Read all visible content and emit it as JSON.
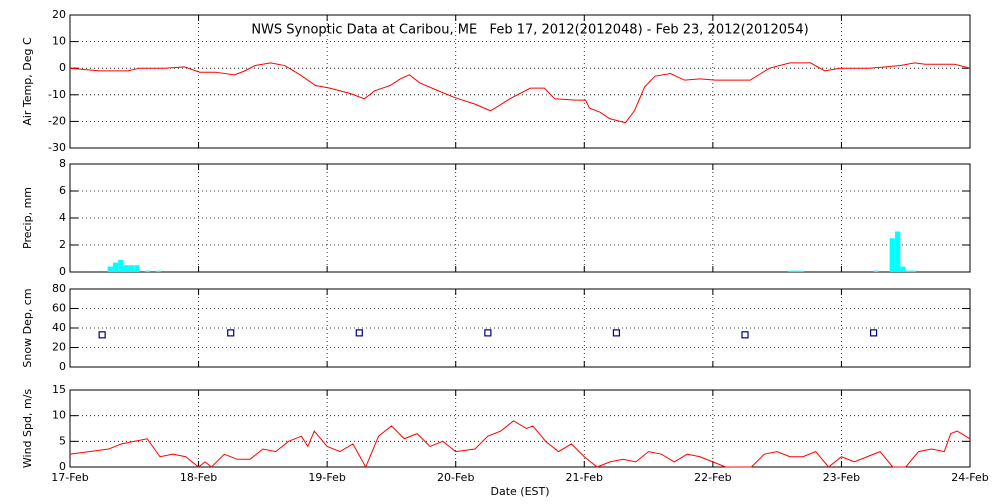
{
  "chart_data": [
    {
      "type": "line",
      "title": "NWS Synoptic Data at Caribou, ME   Feb 17, 2012(2012048) - Feb 23, 2012(2012054)",
      "ylabel": "Air Temp, Deg C",
      "x": [
        17.0,
        17.23,
        17.45,
        17.54,
        17.74,
        17.89,
        18.01,
        18.13,
        18.28,
        18.36,
        18.44,
        18.56,
        18.67,
        18.79,
        18.91,
        19.02,
        19.18,
        19.29,
        19.37,
        19.49,
        19.57,
        19.64,
        19.72,
        19.84,
        19.99,
        20.15,
        20.27,
        20.34,
        20.42,
        20.58,
        20.69,
        20.77,
        20.93,
        21.01,
        21.04,
        21.12,
        21.2,
        21.32,
        21.39,
        21.47,
        21.55,
        21.67,
        21.78,
        21.9,
        22.02,
        22.29,
        22.44,
        22.6,
        22.76,
        22.87,
        22.99,
        23.22,
        23.46,
        23.57,
        23.65,
        23.77,
        23.88,
        24.0
      ],
      "values": [
        0,
        -1,
        -1,
        0,
        0,
        0.5,
        -1.5,
        -1.5,
        -2.5,
        -1,
        1,
        2,
        1,
        -2.5,
        -6.5,
        -7.5,
        -9.5,
        -11.5,
        -8.5,
        -6.5,
        -4,
        -2.5,
        -5.5,
        -8,
        -11,
        -13.5,
        -16,
        -14,
        -11.5,
        -7.5,
        -7.5,
        -11.5,
        -12,
        -12,
        -15,
        -16.5,
        -19,
        -20.5,
        -16,
        -7,
        -3,
        -2,
        -4.5,
        -4,
        -4.5,
        -4.5,
        0,
        2,
        2,
        -1,
        0,
        0,
        1,
        2,
        1.5,
        1.5,
        1.5,
        0
      ],
      "color": "#ff0000",
      "xlim": [
        17,
        24
      ],
      "xticks": [
        17,
        18,
        19,
        20,
        21,
        22,
        23,
        24
      ],
      "ylim": [
        -30,
        20
      ],
      "yticks": [
        -30,
        -20,
        -10,
        0,
        10,
        20
      ],
      "grid": true
    },
    {
      "type": "bar",
      "ylabel": "Precip, mm",
      "x": [
        17.292,
        17.333,
        17.375,
        17.417,
        17.458,
        17.5,
        17.583,
        17.667,
        22.583,
        22.625,
        22.667,
        23.25,
        23.375,
        23.417,
        23.458,
        23.5,
        23.542
      ],
      "values": [
        0.4,
        0.7,
        0.9,
        0.5,
        0.5,
        0.5,
        0.1,
        0.1,
        0.1,
        0.1,
        0.1,
        0.1,
        2.5,
        3.0,
        0.4,
        0.1,
        0.1
      ],
      "color": "#00ffff",
      "xlim": [
        17,
        24
      ],
      "xticks": [
        17,
        18,
        19,
        20,
        21,
        22,
        23,
        24
      ],
      "ylim": [
        0,
        8
      ],
      "yticks": [
        0,
        2,
        4,
        6,
        8
      ],
      "grid": true
    },
    {
      "type": "scatter",
      "ylabel": "Snow Dep, cm",
      "x": [
        17.25,
        18.25,
        19.25,
        20.25,
        21.25,
        22.25,
        23.25
      ],
      "values": [
        33,
        35,
        35,
        35,
        35,
        33,
        35
      ],
      "color": "#000080",
      "xlim": [
        17,
        24
      ],
      "xticks": [
        17,
        18,
        19,
        20,
        21,
        22,
        23,
        24
      ],
      "ylim": [
        0,
        80
      ],
      "yticks": [
        0,
        20,
        40,
        60,
        80
      ],
      "grid": true
    },
    {
      "type": "line",
      "ylabel": "Wind Spd, m/s",
      "xlabel": "Date (EST)",
      "x": [
        17.0,
        17.15,
        17.3,
        17.4,
        17.5,
        17.6,
        17.7,
        17.8,
        17.9,
        18.0,
        18.05,
        18.1,
        18.2,
        18.3,
        18.4,
        18.5,
        18.6,
        18.7,
        18.8,
        18.85,
        18.9,
        19.0,
        19.1,
        19.2,
        19.3,
        19.4,
        19.5,
        19.6,
        19.7,
        19.8,
        19.9,
        20.0,
        20.15,
        20.25,
        20.35,
        20.45,
        20.55,
        20.6,
        20.7,
        20.8,
        20.9,
        21.0,
        21.1,
        21.2,
        21.3,
        21.4,
        21.5,
        21.6,
        21.7,
        21.8,
        21.9,
        22.0,
        22.1,
        22.2,
        22.3,
        22.4,
        22.5,
        22.6,
        22.7,
        22.8,
        22.9,
        23.0,
        23.1,
        23.2,
        23.3,
        23.4,
        23.5,
        23.6,
        23.7,
        23.8,
        23.85,
        23.9,
        24.0
      ],
      "values": [
        2.5,
        3,
        3.5,
        4.5,
        5,
        5.5,
        2,
        2.5,
        2,
        0,
        1,
        0,
        2.5,
        1.5,
        1.5,
        3.5,
        3,
        5,
        6,
        4,
        7,
        4,
        3,
        4.5,
        0,
        6,
        8,
        5.5,
        6.5,
        4,
        5,
        3,
        3.5,
        6,
        7,
        9,
        7.5,
        8,
        5,
        3,
        4.5,
        2,
        0,
        1,
        1.5,
        1,
        3,
        2.5,
        1,
        2.5,
        2,
        1,
        0,
        0,
        0,
        2.5,
        3,
        2,
        2,
        3,
        0,
        2,
        1,
        2,
        3,
        0,
        0,
        3,
        3.5,
        3,
        6.5,
        7,
        5.5
      ],
      "color": "#ff0000",
      "xlim": [
        17,
        24
      ],
      "xticks": [
        {
          "value": 17,
          "label": "17-Feb"
        },
        {
          "value": 18,
          "label": "18-Feb"
        },
        {
          "value": 19,
          "label": "19-Feb"
        },
        {
          "value": 20,
          "label": "20-Feb"
        },
        {
          "value": 21,
          "label": "21-Feb"
        },
        {
          "value": 22,
          "label": "22-Feb"
        },
        {
          "value": 23,
          "label": "23-Feb"
        },
        {
          "value": 24,
          "label": "24-Feb"
        }
      ],
      "ylim": [
        0,
        15
      ],
      "yticks": [
        0,
        5,
        10,
        15
      ],
      "grid": true
    }
  ]
}
